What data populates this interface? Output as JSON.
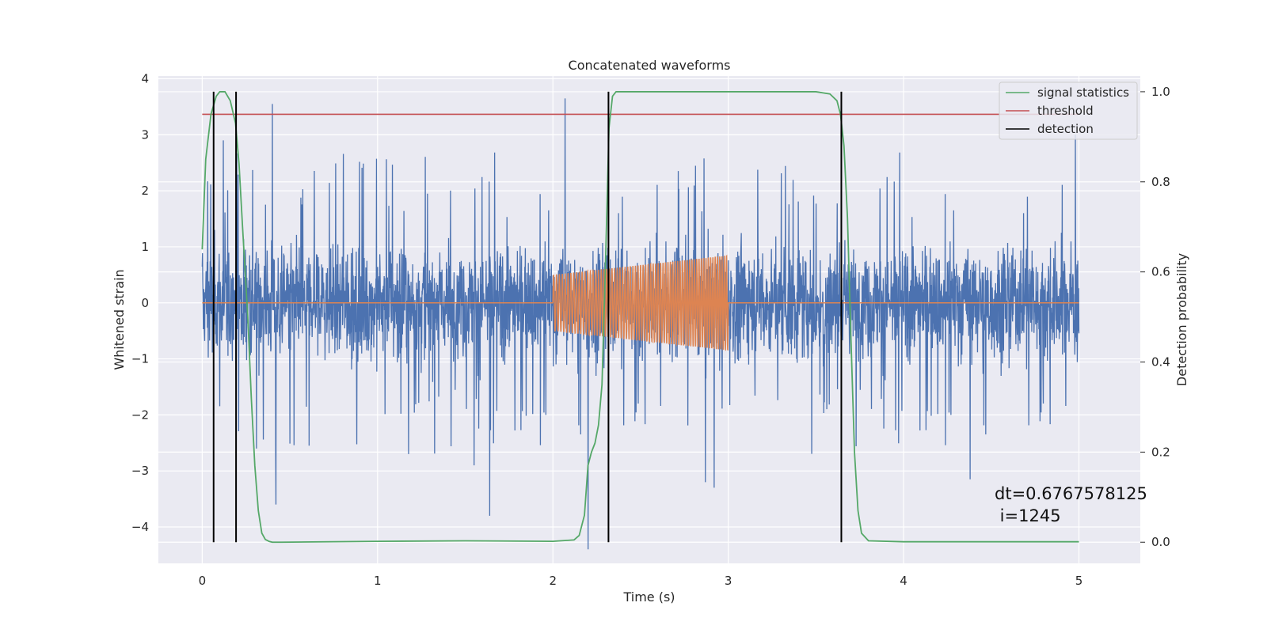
{
  "chart_data": {
    "type": "line",
    "title": "Concatenated waveforms",
    "xlabel": "Time (s)",
    "ylabel": "Whitened strain",
    "y2label": "Detection probability",
    "xlim": [
      -0.25,
      5.35
    ],
    "ylim": [
      -4.65,
      4.05
    ],
    "y2lim": [
      -0.047,
      1.035
    ],
    "x_ticks": [
      "0",
      "1",
      "2",
      "3",
      "4",
      "5"
    ],
    "y_ticks": [
      "4",
      "3",
      "2",
      "1",
      "0",
      "−1",
      "−2",
      "−3",
      "−4"
    ],
    "y2_ticks": [
      "0.0",
      "0.2",
      "0.4",
      "0.6",
      "0.8",
      "1.0"
    ],
    "grid": true,
    "legend_position": "top-right",
    "colors": {
      "noise": "#4c72b0",
      "signal": "#dd8452",
      "statistics": "#55a868",
      "threshold": "#c44e52",
      "detection": "#000000",
      "background": "#eaeaf2"
    },
    "noise_envelope": {
      "x": [
        0,
        5
      ],
      "typical_low": -1.2,
      "typical_high": 1.2,
      "outliers": [
        {
          "x": 0.12,
          "y": 2.9
        },
        {
          "x": 0.4,
          "y": 3.55
        },
        {
          "x": 0.42,
          "y": -3.6
        },
        {
          "x": 2.07,
          "y": 3.65
        },
        {
          "x": 2.2,
          "y": -4.4
        },
        {
          "x": 1.64,
          "y": -3.8
        },
        {
          "x": 2.92,
          "y": -3.3
        },
        {
          "x": 2.87,
          "y": -3.2
        },
        {
          "x": 4.38,
          "y": -3.15
        },
        {
          "x": 4.98,
          "y": 3.0
        },
        {
          "x": 0.31,
          "y": -2.6
        },
        {
          "x": 1.55,
          "y": -2.9
        }
      ]
    },
    "injected_signal": {
      "name": "",
      "start": 2.0,
      "end": 3.0,
      "amplitude_start": 0.5,
      "amplitude_end": 0.85,
      "cycles": 60
    },
    "series": [
      {
        "name": "signal statistics",
        "axis": "right",
        "x": [
          0.0,
          0.02,
          0.05,
          0.08,
          0.1,
          0.13,
          0.16,
          0.19,
          0.21,
          0.23,
          0.26,
          0.28,
          0.3,
          0.32,
          0.34,
          0.36,
          0.38,
          0.4,
          0.45,
          1.0,
          1.5,
          2.0,
          2.12,
          2.15,
          2.18,
          2.2,
          2.22,
          2.24,
          2.26,
          2.28,
          2.3,
          2.32,
          2.34,
          2.36,
          2.5,
          3.5,
          3.58,
          3.62,
          3.64,
          3.66,
          3.68,
          3.7,
          3.72,
          3.74,
          3.76,
          3.8,
          4.0,
          5.0
        ],
        "y": [
          0.65,
          0.85,
          0.95,
          0.99,
          1.0,
          1.0,
          0.98,
          0.93,
          0.84,
          0.7,
          0.5,
          0.32,
          0.17,
          0.07,
          0.02,
          0.006,
          0.002,
          0.0,
          0.0,
          0.002,
          0.003,
          0.002,
          0.005,
          0.015,
          0.06,
          0.17,
          0.2,
          0.22,
          0.26,
          0.35,
          0.62,
          0.92,
          0.99,
          1.0,
          1.0,
          1.0,
          0.995,
          0.98,
          0.95,
          0.88,
          0.72,
          0.45,
          0.2,
          0.07,
          0.02,
          0.003,
          0.001,
          0.001
        ]
      },
      {
        "name": "threshold",
        "axis": "right",
        "x": [
          0,
          5
        ],
        "y": [
          0.95,
          0.95
        ]
      },
      {
        "name": "detection",
        "axis": "right",
        "type": "vlines",
        "x": [
          0.065,
          0.193,
          2.317,
          3.645
        ],
        "ymin": 0.0,
        "ymax": 1.0
      }
    ],
    "annotation": {
      "line1": "dt=0.6767578125",
      "line2": " i=1245"
    }
  }
}
